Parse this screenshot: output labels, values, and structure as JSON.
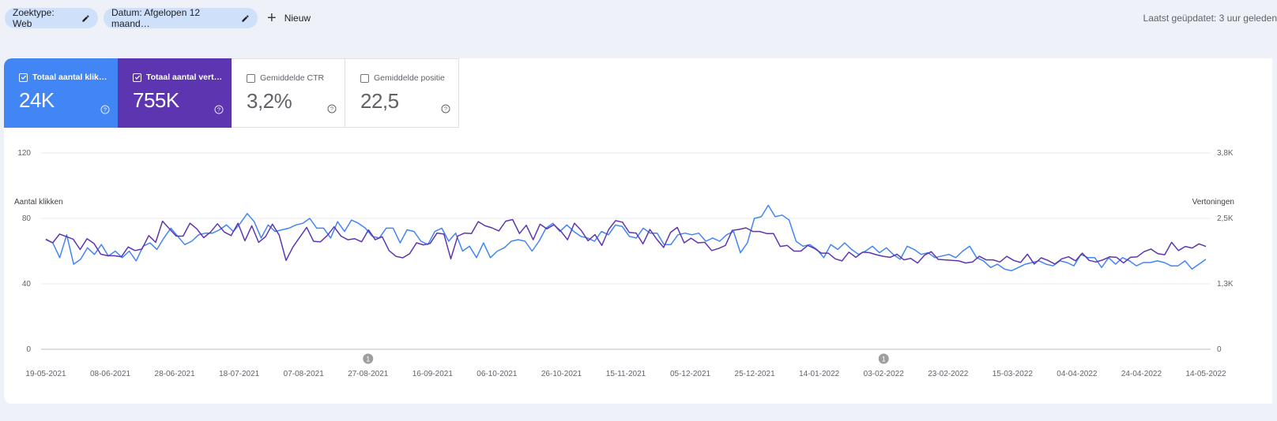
{
  "filters": {
    "search_type": "Zoektype: Web",
    "date": "Datum: Afgelopen 12 maand…",
    "new_label": "Nieuw"
  },
  "last_updated": "Laatst geüpdatet: 3 uur geleden",
  "metrics": [
    {
      "label": "Totaal aantal klik…",
      "value": "24K",
      "checked": true,
      "color": "#4285f4"
    },
    {
      "label": "Totaal aantal vert…",
      "value": "755K",
      "checked": true,
      "color": "#5e35b1"
    },
    {
      "label": "Gemiddelde CTR",
      "value": "3,2%",
      "checked": false
    },
    {
      "label": "Gemiddelde positie",
      "value": "22,5",
      "checked": false
    }
  ],
  "chart_data": {
    "type": "line",
    "left_axis": {
      "title": "Aantal klikken",
      "ticks": [
        "0",
        "40",
        "80",
        "120"
      ],
      "range": [
        0,
        120
      ]
    },
    "right_axis": {
      "title": "Vertoningen",
      "ticks": [
        "0",
        "1,3K",
        "2,5K",
        "3,8K"
      ],
      "range": [
        0,
        3.8
      ]
    },
    "x_labels": [
      "19-05-2021",
      "08-06-2021",
      "28-06-2021",
      "18-07-2021",
      "07-08-2021",
      "27-08-2021",
      "16-09-2021",
      "06-10-2021",
      "26-10-2021",
      "15-11-2021",
      "05-12-2021",
      "25-12-2021",
      "14-01-2022",
      "03-02-2022",
      "23-02-2022",
      "15-03-2022",
      "04-04-2022",
      "24-04-2022",
      "14-05-2022"
    ],
    "annotations": [
      {
        "date": "27-08-2021",
        "label": "1"
      },
      {
        "date": "03-02-2022",
        "label": "1"
      }
    ],
    "grid": true,
    "series": [
      {
        "name": "Totaal aantal klikken",
        "axis": "left",
        "color": "#4285f4",
        "values": [
          67,
          65,
          56,
          70,
          52,
          55,
          62,
          58,
          64,
          57,
          60,
          56,
          60,
          54,
          63,
          65,
          61,
          68,
          74,
          69,
          64,
          66,
          70,
          71,
          71,
          73,
          76,
          72,
          77,
          83,
          78,
          68,
          76,
          72,
          73,
          74,
          76,
          77,
          80,
          74,
          74,
          68,
          78,
          72,
          79,
          77,
          74,
          69,
          68,
          74,
          74,
          65,
          73,
          72,
          66,
          64,
          72,
          74,
          66,
          71,
          60,
          63,
          56,
          65,
          56,
          60,
          62,
          66,
          67,
          66,
          60,
          66,
          74,
          77,
          72,
          76,
          72,
          69,
          68,
          66,
          72,
          70,
          76,
          75,
          69,
          68,
          74,
          71,
          71,
          64,
          64,
          70,
          71,
          70,
          71,
          66,
          68,
          66,
          70,
          72,
          59,
          65,
          80,
          81,
          88,
          81,
          82,
          79,
          66,
          63,
          64,
          61,
          56,
          64,
          61,
          65,
          61,
          58,
          60,
          63,
          59,
          62,
          58,
          55,
          63,
          61,
          58,
          59,
          56,
          57,
          58,
          56,
          60,
          63,
          56,
          54,
          50,
          52,
          49,
          48,
          50,
          52,
          53,
          54,
          52,
          51,
          54,
          53,
          51,
          58,
          56,
          56,
          50,
          56,
          52,
          56,
          54,
          51,
          53,
          53,
          54,
          53,
          51,
          51,
          54,
          49,
          52,
          55
        ]
      },
      {
        "name": "Totaal aantal vertoningen",
        "axis": "right",
        "color": "#5e35b1",
        "values": [
          2.13,
          2.06,
          2.23,
          2.18,
          2.13,
          1.93,
          2.14,
          2.05,
          1.84,
          1.81,
          1.81,
          1.79,
          1.98,
          1.91,
          1.94,
          2.2,
          2.07,
          2.48,
          2.33,
          2.19,
          2.19,
          2.44,
          2.33,
          2.16,
          2.27,
          2.43,
          2.27,
          2.2,
          2.44,
          2.1,
          2.39,
          2.07,
          2.18,
          2.42,
          2.21,
          1.72,
          1.98,
          2.17,
          2.36,
          2.09,
          2.08,
          2.2,
          2.37,
          2.19,
          2.12,
          2.14,
          2.08,
          2.31,
          2.12,
          2.18,
          1.91,
          1.8,
          1.77,
          1.85,
          2.06,
          2.02,
          2.05,
          2.25,
          2.23,
          1.75,
          2.19,
          2.25,
          2.24,
          2.47,
          2.39,
          2.35,
          2.29,
          2.48,
          2.51,
          2.24,
          2.4,
          2.12,
          2.42,
          2.33,
          2.41,
          2.29,
          2.12,
          2.44,
          2.3,
          2.1,
          2.22,
          2.01,
          2.32,
          2.49,
          2.46,
          2.26,
          2.25,
          2.04,
          2.32,
          2.13,
          1.97,
          2.26,
          2.36,
          2.06,
          2.15,
          2.06,
          2.07,
          1.91,
          1.95,
          2.01,
          2.3,
          2.32,
          2.35,
          2.28,
          2.28,
          2.24,
          2.24,
          1.99,
          2.01,
          1.9,
          1.9,
          2.01,
          1.95,
          1.86,
          1.86,
          1.75,
          1.71,
          1.88,
          1.78,
          1.88,
          1.87,
          1.83,
          1.8,
          1.78,
          1.84,
          1.73,
          1.76,
          1.67,
          1.82,
          1.89,
          1.74,
          1.73,
          1.72,
          1.71,
          1.67,
          1.69,
          1.8,
          1.73,
          1.73,
          1.69,
          1.8,
          1.72,
          1.68,
          1.84,
          1.65,
          1.77,
          1.72,
          1.65,
          1.75,
          1.79,
          1.71,
          1.86,
          1.72,
          1.69,
          1.73,
          1.79,
          1.78,
          1.67,
          1.78,
          1.79,
          1.89,
          1.94,
          1.85,
          1.83,
          2.07,
          1.91,
          1.99,
          1.96,
          2.04,
          1.99
        ]
      }
    ]
  }
}
